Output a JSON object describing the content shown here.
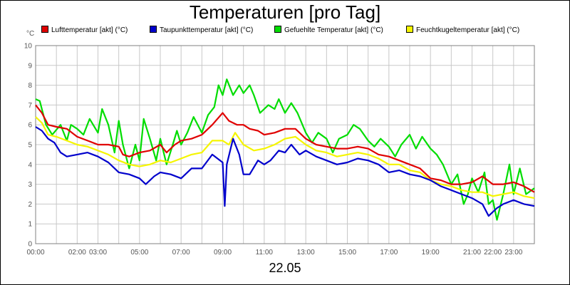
{
  "chart_data": {
    "type": "line",
    "title": "Temperaturen [pro Tag]",
    "ylabel": "°C",
    "xlabel": "22.05",
    "ylim": [
      0,
      10
    ],
    "xlim": [
      0,
      24
    ],
    "grid": true,
    "legend_position": "top",
    "yticks": [
      "0",
      "1",
      "2",
      "3",
      "4",
      "5",
      "6",
      "7",
      "8",
      "9",
      "10"
    ],
    "xticks": [
      {
        "h": 0,
        "label": "00:00"
      },
      {
        "h": 2,
        "label": "02:00"
      },
      {
        "h": 3,
        "label": "03:00"
      },
      {
        "h": 5,
        "label": "05:00"
      },
      {
        "h": 7,
        "label": "07:00"
      },
      {
        "h": 9,
        "label": "09:00"
      },
      {
        "h": 11,
        "label": "11:00"
      },
      {
        "h": 13,
        "label": "13:00"
      },
      {
        "h": 15,
        "label": "15:00"
      },
      {
        "h": 17,
        "label": "17:00"
      },
      {
        "h": 19,
        "label": "19:00"
      },
      {
        "h": 21,
        "label": "21:00"
      },
      {
        "h": 22,
        "label": "22:00"
      },
      {
        "h": 23,
        "label": "23:00"
      }
    ],
    "series": [
      {
        "name": "Lufttemperatur [akt] (°C)",
        "color": "#e00000",
        "points": [
          [
            0,
            7.0
          ],
          [
            0.3,
            6.6
          ],
          [
            0.6,
            6.0
          ],
          [
            1.0,
            5.9
          ],
          [
            1.5,
            5.8
          ],
          [
            2.0,
            5.4
          ],
          [
            2.5,
            5.2
          ],
          [
            3.0,
            5.0
          ],
          [
            3.5,
            5.0
          ],
          [
            4.0,
            4.9
          ],
          [
            4.2,
            4.5
          ],
          [
            4.5,
            4.4
          ],
          [
            5.0,
            4.6
          ],
          [
            5.5,
            4.7
          ],
          [
            6.0,
            5.0
          ],
          [
            6.3,
            4.6
          ],
          [
            6.7,
            5.0
          ],
          [
            7.0,
            5.2
          ],
          [
            7.5,
            5.3
          ],
          [
            8.0,
            5.5
          ],
          [
            8.5,
            6.0
          ],
          [
            9.0,
            6.6
          ],
          [
            9.3,
            6.2
          ],
          [
            9.7,
            6.0
          ],
          [
            10.0,
            6.0
          ],
          [
            10.3,
            5.8
          ],
          [
            10.7,
            5.7
          ],
          [
            11.0,
            5.5
          ],
          [
            11.5,
            5.6
          ],
          [
            12.0,
            5.8
          ],
          [
            12.5,
            5.8
          ],
          [
            13.0,
            5.3
          ],
          [
            13.5,
            5.0
          ],
          [
            14.0,
            4.9
          ],
          [
            14.5,
            4.8
          ],
          [
            15.0,
            4.8
          ],
          [
            15.5,
            4.9
          ],
          [
            16.0,
            4.8
          ],
          [
            16.5,
            4.5
          ],
          [
            17.0,
            4.4
          ],
          [
            17.5,
            4.2
          ],
          [
            18.0,
            4.0
          ],
          [
            18.5,
            3.8
          ],
          [
            19.0,
            3.3
          ],
          [
            19.5,
            3.2
          ],
          [
            20.0,
            3.0
          ],
          [
            20.5,
            3.0
          ],
          [
            21.0,
            3.1
          ],
          [
            21.5,
            3.4
          ],
          [
            22.0,
            3.0
          ],
          [
            22.5,
            3.0
          ],
          [
            23.0,
            3.1
          ],
          [
            23.5,
            2.9
          ],
          [
            24.0,
            2.6
          ]
        ]
      },
      {
        "name": "Taupunkttemperatur [akt] (°C)",
        "color": "#0000cc",
        "points": [
          [
            0,
            5.9
          ],
          [
            0.3,
            5.7
          ],
          [
            0.6,
            5.3
          ],
          [
            0.9,
            5.1
          ],
          [
            1.2,
            4.6
          ],
          [
            1.5,
            4.4
          ],
          [
            2.0,
            4.5
          ],
          [
            2.5,
            4.6
          ],
          [
            3.0,
            4.4
          ],
          [
            3.5,
            4.1
          ],
          [
            4.0,
            3.6
          ],
          [
            4.5,
            3.5
          ],
          [
            5.0,
            3.3
          ],
          [
            5.3,
            3.0
          ],
          [
            5.7,
            3.4
          ],
          [
            6.0,
            3.6
          ],
          [
            6.5,
            3.5
          ],
          [
            7.0,
            3.3
          ],
          [
            7.5,
            3.8
          ],
          [
            8.0,
            3.8
          ],
          [
            8.5,
            4.5
          ],
          [
            9.0,
            4.1
          ],
          [
            9.1,
            1.9
          ],
          [
            9.2,
            4.0
          ],
          [
            9.5,
            5.3
          ],
          [
            9.8,
            4.5
          ],
          [
            10.0,
            3.5
          ],
          [
            10.3,
            3.5
          ],
          [
            10.7,
            4.2
          ],
          [
            11.0,
            4.0
          ],
          [
            11.3,
            4.2
          ],
          [
            11.7,
            4.7
          ],
          [
            12.0,
            4.6
          ],
          [
            12.3,
            5.0
          ],
          [
            12.7,
            4.5
          ],
          [
            13.0,
            4.7
          ],
          [
            13.5,
            4.4
          ],
          [
            14.0,
            4.2
          ],
          [
            14.5,
            4.0
          ],
          [
            15.0,
            4.1
          ],
          [
            15.5,
            4.3
          ],
          [
            16.0,
            4.2
          ],
          [
            16.5,
            4.0
          ],
          [
            17.0,
            3.6
          ],
          [
            17.5,
            3.7
          ],
          [
            18.0,
            3.5
          ],
          [
            18.5,
            3.4
          ],
          [
            19.0,
            3.2
          ],
          [
            19.5,
            2.9
          ],
          [
            20.0,
            2.7
          ],
          [
            20.5,
            2.5
          ],
          [
            21.0,
            2.3
          ],
          [
            21.5,
            2.0
          ],
          [
            21.8,
            1.4
          ],
          [
            22.2,
            1.8
          ],
          [
            22.5,
            2.0
          ],
          [
            23.0,
            2.2
          ],
          [
            23.5,
            2.0
          ],
          [
            24.0,
            1.9
          ]
        ]
      },
      {
        "name": "Gefuehlte Temperatur [akt] (°C)",
        "color": "#00dd00",
        "points": [
          [
            0,
            7.3
          ],
          [
            0.2,
            7.2
          ],
          [
            0.5,
            6.0
          ],
          [
            0.8,
            5.5
          ],
          [
            1.2,
            6.0
          ],
          [
            1.5,
            5.2
          ],
          [
            1.7,
            6.0
          ],
          [
            2.0,
            5.8
          ],
          [
            2.3,
            5.5
          ],
          [
            2.6,
            6.3
          ],
          [
            3.0,
            5.6
          ],
          [
            3.2,
            6.8
          ],
          [
            3.5,
            6.0
          ],
          [
            3.8,
            4.6
          ],
          [
            4.0,
            6.2
          ],
          [
            4.2,
            5.0
          ],
          [
            4.5,
            3.8
          ],
          [
            4.8,
            5.0
          ],
          [
            5.0,
            4.2
          ],
          [
            5.2,
            6.3
          ],
          [
            5.5,
            5.3
          ],
          [
            5.8,
            4.2
          ],
          [
            6.0,
            5.3
          ],
          [
            6.3,
            4.0
          ],
          [
            6.6,
            5.0
          ],
          [
            6.8,
            5.7
          ],
          [
            7.0,
            5.0
          ],
          [
            7.3,
            5.6
          ],
          [
            7.6,
            6.4
          ],
          [
            8.0,
            5.6
          ],
          [
            8.3,
            6.5
          ],
          [
            8.6,
            6.9
          ],
          [
            8.8,
            8.0
          ],
          [
            9.0,
            7.5
          ],
          [
            9.2,
            8.3
          ],
          [
            9.5,
            7.5
          ],
          [
            9.8,
            8.0
          ],
          [
            10.0,
            7.6
          ],
          [
            10.3,
            8.0
          ],
          [
            10.5,
            7.5
          ],
          [
            10.8,
            6.6
          ],
          [
            11.2,
            7.0
          ],
          [
            11.5,
            6.8
          ],
          [
            11.7,
            7.3
          ],
          [
            12.0,
            6.6
          ],
          [
            12.3,
            7.1
          ],
          [
            12.6,
            6.6
          ],
          [
            13.0,
            5.6
          ],
          [
            13.3,
            5.1
          ],
          [
            13.6,
            5.6
          ],
          [
            14.0,
            5.3
          ],
          [
            14.3,
            4.6
          ],
          [
            14.6,
            5.3
          ],
          [
            15.0,
            5.5
          ],
          [
            15.3,
            6.0
          ],
          [
            15.6,
            5.8
          ],
          [
            16.0,
            5.2
          ],
          [
            16.3,
            4.9
          ],
          [
            16.6,
            5.3
          ],
          [
            17.0,
            4.9
          ],
          [
            17.3,
            4.4
          ],
          [
            17.6,
            5.0
          ],
          [
            18.0,
            5.5
          ],
          [
            18.3,
            4.8
          ],
          [
            18.6,
            5.4
          ],
          [
            19.0,
            4.8
          ],
          [
            19.3,
            4.5
          ],
          [
            19.6,
            4.0
          ],
          [
            20.0,
            3.0
          ],
          [
            20.3,
            3.5
          ],
          [
            20.6,
            2.0
          ],
          [
            20.8,
            2.5
          ],
          [
            21.0,
            3.3
          ],
          [
            21.3,
            2.6
          ],
          [
            21.6,
            3.6
          ],
          [
            21.8,
            2.0
          ],
          [
            22.0,
            2.2
          ],
          [
            22.2,
            1.2
          ],
          [
            22.5,
            2.5
          ],
          [
            22.8,
            4.0
          ],
          [
            23.0,
            2.5
          ],
          [
            23.3,
            3.8
          ],
          [
            23.6,
            2.5
          ],
          [
            24.0,
            2.8
          ]
        ]
      },
      {
        "name": "Feuchtkugeltemperatur [akt] (°C)",
        "color": "#f5f500",
        "points": [
          [
            0,
            6.4
          ],
          [
            0.3,
            6.1
          ],
          [
            0.6,
            5.5
          ],
          [
            1.0,
            5.4
          ],
          [
            1.5,
            5.2
          ],
          [
            2.0,
            5.0
          ],
          [
            2.5,
            4.9
          ],
          [
            3.0,
            4.7
          ],
          [
            3.5,
            4.5
          ],
          [
            4.0,
            4.2
          ],
          [
            4.5,
            4.0
          ],
          [
            5.0,
            3.9
          ],
          [
            5.5,
            4.0
          ],
          [
            6.0,
            4.2
          ],
          [
            6.5,
            4.1
          ],
          [
            7.0,
            4.3
          ],
          [
            7.5,
            4.5
          ],
          [
            8.0,
            4.6
          ],
          [
            8.5,
            5.2
          ],
          [
            9.0,
            5.2
          ],
          [
            9.3,
            5.0
          ],
          [
            9.6,
            5.6
          ],
          [
            10.0,
            5.0
          ],
          [
            10.5,
            4.7
          ],
          [
            11.0,
            4.8
          ],
          [
            11.5,
            5.0
          ],
          [
            12.0,
            5.3
          ],
          [
            12.5,
            5.4
          ],
          [
            13.0,
            5.0
          ],
          [
            13.5,
            4.7
          ],
          [
            14.0,
            4.6
          ],
          [
            14.5,
            4.4
          ],
          [
            15.0,
            4.5
          ],
          [
            15.5,
            4.6
          ],
          [
            16.0,
            4.5
          ],
          [
            16.5,
            4.3
          ],
          [
            17.0,
            4.0
          ],
          [
            17.5,
            4.0
          ],
          [
            18.0,
            3.7
          ],
          [
            18.5,
            3.6
          ],
          [
            19.0,
            3.2
          ],
          [
            19.5,
            3.0
          ],
          [
            20.0,
            2.9
          ],
          [
            20.5,
            2.7
          ],
          [
            21.0,
            2.6
          ],
          [
            21.5,
            2.6
          ],
          [
            22.0,
            2.4
          ],
          [
            22.5,
            2.5
          ],
          [
            23.0,
            2.6
          ],
          [
            23.5,
            2.4
          ],
          [
            24.0,
            2.3
          ]
        ]
      }
    ]
  }
}
